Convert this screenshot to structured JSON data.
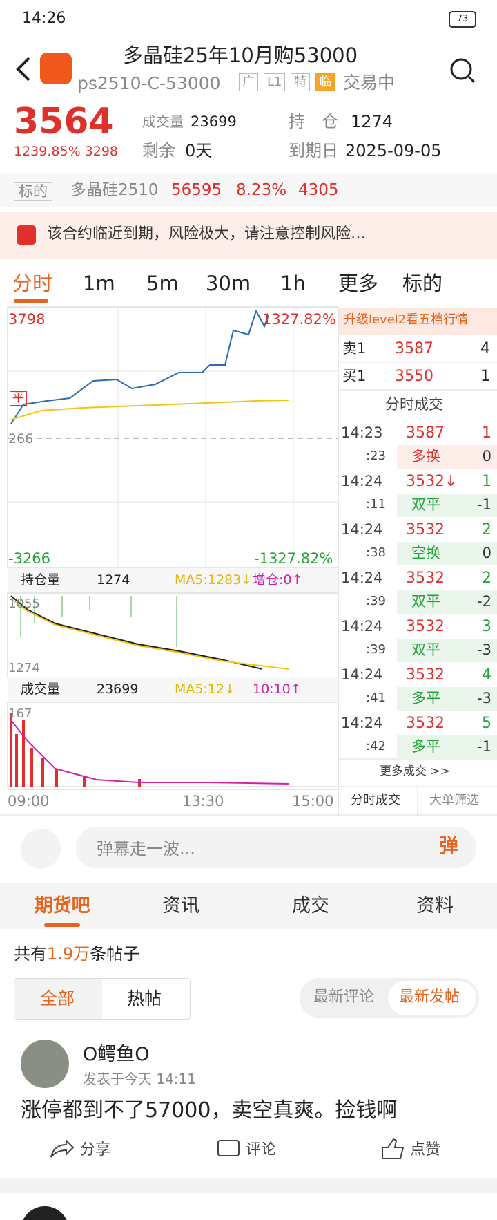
{
  "status": {
    "time": "14:26",
    "battery": "73"
  },
  "header": {
    "title": "多晶硅25年10月购53000",
    "code": "ps2510-C-53000",
    "tags": [
      "广",
      "L1",
      "特",
      "临"
    ],
    "state": "交易中"
  },
  "quote": {
    "price": "3564",
    "change": "1239.85% 3298",
    "volume_label": "成交量",
    "volume": "23699",
    "hold_label": "持　仓",
    "hold": "1274",
    "remain_label": "剩余",
    "remain": "0天",
    "expiry_label": "到期日",
    "expiry": "2025-09-05"
  },
  "underlying": {
    "label": "标的",
    "name": "多晶硅2510",
    "price": "56595",
    "pct": "8.23%",
    "chg": "4305"
  },
  "warning": "该合约临近到期，风险极大，请注意控制风险…",
  "tabs": [
    "分时",
    "1m",
    "5m",
    "30m",
    "1h",
    "更多",
    "标的"
  ],
  "chart": {
    "ymax": "3798",
    "ymax_pct": "1327.82%",
    "mid": "266",
    "flat": "平",
    "ymin": "-3266",
    "ymin_pct": "-1327.82%",
    "oi_label": "持仓量",
    "oi": "1274",
    "oi_ma": "MA5:1283↓",
    "oi_inc": "增仓:0↑",
    "oi_top": "1055",
    "oi_bottom": "1274",
    "vol_label": "成交量",
    "vol": "23699",
    "vol_ma": "MA5:12↓",
    "vol_ratio": "10:10↑",
    "vol_top": "167",
    "times": [
      "09:00",
      "13:30",
      "15:00"
    ]
  },
  "orderbook": {
    "upgrade": "升级level2看五档行情",
    "levels": [
      {
        "side": "卖1",
        "price": "3587",
        "qty": "4"
      },
      {
        "side": "买1",
        "price": "3550",
        "qty": "1"
      }
    ],
    "trades_title": "分时成交",
    "trades": [
      {
        "time": "14:23",
        "sec": ":23",
        "price": "3587",
        "qty": "1",
        "kind": "多换",
        "chg": "0"
      },
      {
        "time": "14:24",
        "sec": ":11",
        "price": "3532↓",
        "qty": "1",
        "kind": "双平",
        "chg": "-1"
      },
      {
        "time": "14:24",
        "sec": ":38",
        "price": "3532",
        "qty": "2",
        "kind": "空换",
        "chg": "0"
      },
      {
        "time": "14:24",
        "sec": ":39",
        "price": "3532",
        "qty": "2",
        "kind": "双平",
        "chg": "-2"
      },
      {
        "time": "14:24",
        "sec": ":39",
        "price": "3532",
        "qty": "3",
        "kind": "双平",
        "chg": "-3"
      },
      {
        "time": "14:24",
        "sec": ":41",
        "price": "3532",
        "qty": "4",
        "kind": "多平",
        "chg": "-3"
      },
      {
        "time": "14:24",
        "sec": ":42",
        "price": "3532",
        "qty": "5",
        "kind": "多平",
        "chg": "-1"
      }
    ],
    "more": "更多成交 >>",
    "bottom_tabs": [
      "分时成交",
      "大单筛选"
    ]
  },
  "danmaku": {
    "placeholder": "弹幕走一波...",
    "button": "弹"
  },
  "sections": [
    "期货吧",
    "资讯",
    "成交",
    "资料"
  ],
  "posts": {
    "prefix": "共有",
    "count": "1.9万",
    "suffix": "条帖子",
    "filters": [
      "全部",
      "热帖"
    ],
    "sort": [
      "最新评论",
      "最新发帖"
    ],
    "items": [
      {
        "user": "O鳄鱼O",
        "time": "发表于今天 14:11",
        "text": "涨停都到不了57000，卖空真爽。捡钱啊",
        "actions": [
          "分享",
          "评论",
          "点赞"
        ]
      }
    ]
  }
}
